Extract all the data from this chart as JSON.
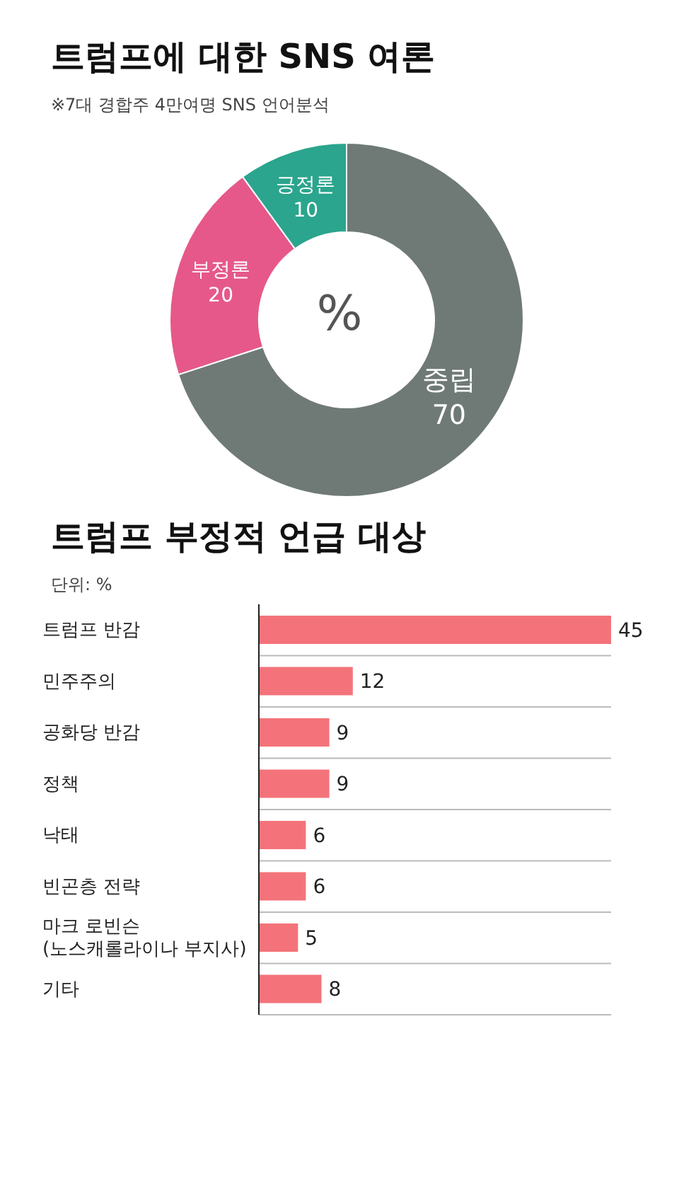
{
  "chart_data": [
    {
      "type": "donut",
      "title": "트럼프에 대한 SNS 여론",
      "subtitle": "※7대 경합주 4만여명 SNS 언어분석",
      "categories": [
        "중립",
        "부정론",
        "긍정론"
      ],
      "values": [
        70,
        20,
        10
      ],
      "colors": [
        "#6f7a77",
        "#e6588a",
        "#2ba58d"
      ],
      "data_labels": true,
      "annotations": [
        "%"
      ]
    },
    {
      "type": "bar",
      "orientation": "horizontal",
      "title": "트럼프 부정적 언급 대상",
      "subtitle": "단위: %",
      "categories": [
        "트럼프 반감",
        "민주주의",
        "공화당 반감",
        "정책",
        "낙태",
        "빈곤층 전략",
        "마크 로빈슨\n(노스캐롤라이나 부지사)",
        "기타"
      ],
      "values": [
        45,
        12,
        9,
        9,
        6,
        6,
        5,
        8
      ],
      "color": "#f4737a",
      "data_labels": true,
      "grid": "y"
    }
  ]
}
